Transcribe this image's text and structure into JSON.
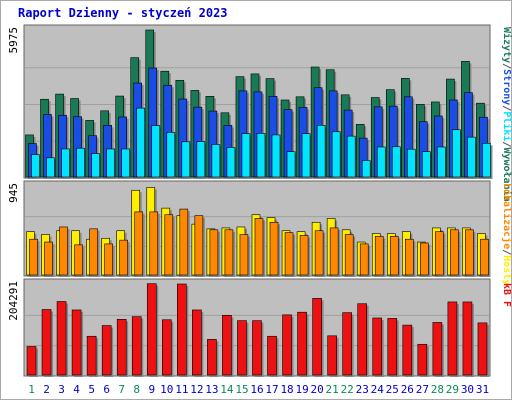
{
  "title": "Raport Dzienny -  styczeń 2023",
  "colors": {
    "background": "#ffffff",
    "panel_bg": "#bfbfbf",
    "border": "#888888",
    "title": "#0000cc",
    "visits": "#1a7a55",
    "pages": "#1a4de6",
    "files": "#00e5ff",
    "hosts": "#ffee00",
    "hits": "#ff8800",
    "kb": "#ee1111",
    "day_normal": "#0000cc",
    "day_weekend": "#0a8a55"
  },
  "chart_data": [
    {
      "type": "bar",
      "name": "top",
      "ymax_label": "5975",
      "ylim": [
        0,
        5975
      ],
      "categories": [
        "1",
        "2",
        "3",
        "4",
        "5",
        "6",
        "7",
        "8",
        "9",
        "10",
        "11",
        "12",
        "13",
        "14",
        "15",
        "16",
        "17",
        "18",
        "19",
        "20",
        "21",
        "22",
        "23",
        "24",
        "25",
        "26",
        "27",
        "28",
        "29",
        "30",
        "31"
      ],
      "legend": [
        {
          "text": "Wizyty",
          "color": "#1a7a55"
        },
        {
          "text": "/",
          "color": "#555555"
        },
        {
          "text": "Strony",
          "color": "#1a4de6"
        },
        {
          "text": "/",
          "color": "#555555"
        },
        {
          "text": "Pliki",
          "color": "#00e5ff"
        },
        {
          "text": "/",
          "color": "#555555"
        },
        {
          "text": "Wywołania",
          "color": "#1a7a55"
        }
      ],
      "series": [
        {
          "name": "Wywołania",
          "color": "#1a7a55",
          "values": [
            1710,
            3160,
            3370,
            3190,
            2300,
            2690,
            3290,
            4850,
            5975,
            4300,
            3930,
            3520,
            3280,
            2610,
            4080,
            4190,
            4000,
            3130,
            3260,
            4470,
            4360,
            3340,
            2140,
            3230,
            3550,
            4010,
            2950,
            3050,
            3980,
            4700,
            3000
          ]
        },
        {
          "name": "Strony",
          "color": "#1a4de6",
          "values": [
            1360,
            2540,
            2510,
            2450,
            1680,
            2100,
            2440,
            3820,
            4430,
            3730,
            3170,
            2840,
            2680,
            2100,
            3500,
            3460,
            3280,
            2740,
            2830,
            3630,
            3500,
            2720,
            1580,
            2850,
            2880,
            3260,
            2250,
            2480,
            3130,
            3430,
            2430
          ]
        },
        {
          "name": "Pliki",
          "color": "#00e5ff",
          "values": [
            910,
            780,
            1140,
            1170,
            950,
            1140,
            1140,
            2800,
            2090,
            1810,
            1430,
            1440,
            1320,
            1200,
            1760,
            1770,
            1710,
            1030,
            1760,
            2100,
            1840,
            1660,
            670,
            1220,
            1230,
            1130,
            1030,
            1220,
            1920,
            1620,
            1370
          ]
        }
      ]
    },
    {
      "type": "bar",
      "name": "middle",
      "ymax_label": "945",
      "ylim": [
        0,
        945
      ],
      "categories": [
        "1",
        "2",
        "3",
        "4",
        "5",
        "6",
        "7",
        "8",
        "9",
        "10",
        "11",
        "12",
        "13",
        "14",
        "15",
        "16",
        "17",
        "18",
        "19",
        "20",
        "21",
        "22",
        "23",
        "24",
        "25",
        "26",
        "27",
        "28",
        "29",
        "30",
        "31"
      ],
      "legend": [
        {
          "text": "Lokalizacje",
          "color": "#ff8800"
        },
        {
          "text": "/",
          "color": "#555555"
        },
        {
          "text": "Hosty",
          "color": "#ffee00"
        }
      ],
      "series": [
        {
          "name": "Hosty",
          "color": "#ffee00",
          "values": [
            460,
            430,
            470,
            470,
            380,
            390,
            470,
            900,
            930,
            710,
            630,
            540,
            490,
            500,
            510,
            640,
            610,
            470,
            460,
            560,
            600,
            480,
            350,
            440,
            440,
            460,
            350,
            500,
            500,
            500,
            440
          ]
        },
        {
          "name": "Lokalizacje",
          "color": "#ff8800",
          "values": [
            380,
            350,
            510,
            320,
            490,
            330,
            370,
            670,
            670,
            640,
            700,
            630,
            480,
            480,
            430,
            600,
            560,
            450,
            420,
            470,
            500,
            430,
            330,
            410,
            410,
            380,
            340,
            460,
            480,
            480,
            380
          ]
        }
      ]
    },
    {
      "type": "bar",
      "name": "bottom",
      "ymax_label": "204291",
      "ylim": [
        0,
        204291
      ],
      "categories": [
        "1",
        "2",
        "3",
        "4",
        "5",
        "6",
        "7",
        "8",
        "9",
        "10",
        "11",
        "12",
        "13",
        "14",
        "15",
        "16",
        "17",
        "18",
        "19",
        "20",
        "21",
        "22",
        "23",
        "24",
        "25",
        "26",
        "27",
        "28",
        "29",
        "30",
        "31"
      ],
      "legend": [
        {
          "text": "kB F",
          "color": "#ee1111"
        }
      ],
      "series": [
        {
          "name": "kB F",
          "color": "#ee1111",
          "values": [
            64000,
            147000,
            165000,
            146000,
            87000,
            111000,
            125000,
            131000,
            205000,
            124000,
            204291,
            146000,
            80000,
            134000,
            122000,
            122000,
            87000,
            135000,
            141000,
            172000,
            88000,
            140000,
            160000,
            128000,
            127000,
            112000,
            69000,
            118000,
            164000,
            164000,
            117000
          ]
        }
      ]
    }
  ],
  "days": [
    {
      "label": "1",
      "weekend": true
    },
    {
      "label": "2",
      "weekend": false
    },
    {
      "label": "3",
      "weekend": false
    },
    {
      "label": "4",
      "weekend": false
    },
    {
      "label": "5",
      "weekend": false
    },
    {
      "label": "6",
      "weekend": false
    },
    {
      "label": "7",
      "weekend": true
    },
    {
      "label": "8",
      "weekend": true
    },
    {
      "label": "9",
      "weekend": false
    },
    {
      "label": "10",
      "weekend": false
    },
    {
      "label": "11",
      "weekend": false
    },
    {
      "label": "12",
      "weekend": false
    },
    {
      "label": "13",
      "weekend": false
    },
    {
      "label": "14",
      "weekend": true
    },
    {
      "label": "15",
      "weekend": true
    },
    {
      "label": "16",
      "weekend": false
    },
    {
      "label": "17",
      "weekend": false
    },
    {
      "label": "18",
      "weekend": false
    },
    {
      "label": "19",
      "weekend": false
    },
    {
      "label": "20",
      "weekend": false
    },
    {
      "label": "21",
      "weekend": true
    },
    {
      "label": "22",
      "weekend": true
    },
    {
      "label": "23",
      "weekend": false
    },
    {
      "label": "24",
      "weekend": false
    },
    {
      "label": "25",
      "weekend": false
    },
    {
      "label": "26",
      "weekend": false
    },
    {
      "label": "27",
      "weekend": false
    },
    {
      "label": "28",
      "weekend": true
    },
    {
      "label": "29",
      "weekend": true
    },
    {
      "label": "30",
      "weekend": false
    },
    {
      "label": "31",
      "weekend": false
    }
  ]
}
